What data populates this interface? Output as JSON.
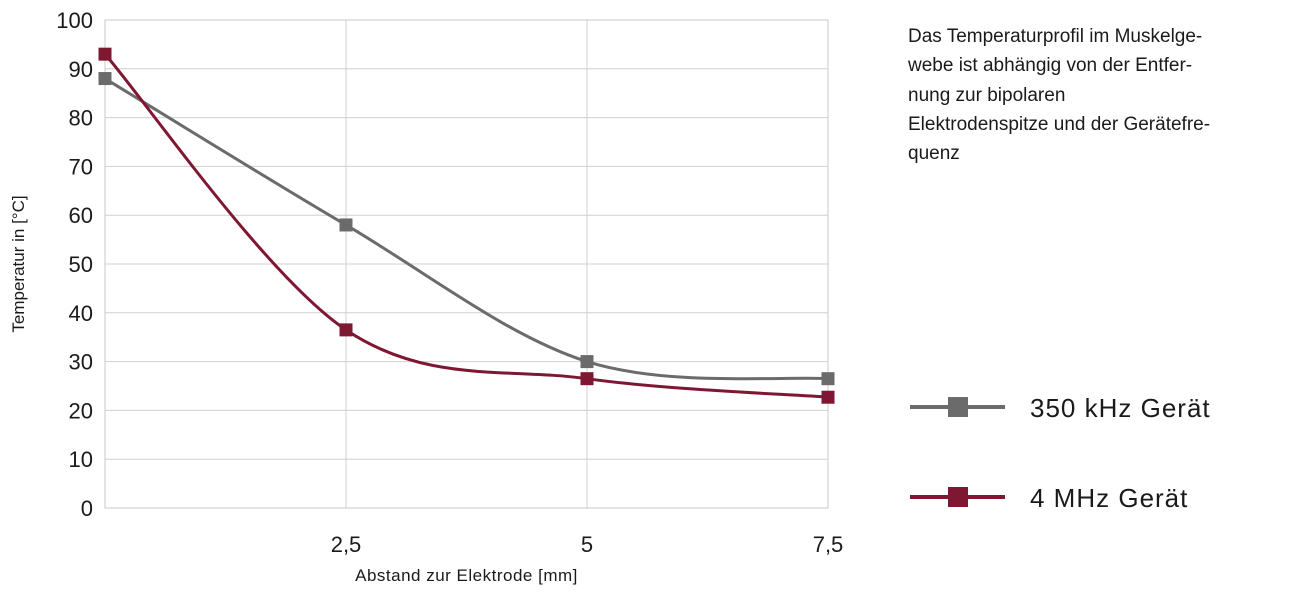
{
  "chart_data": {
    "type": "line",
    "title": "",
    "xlabel": "Abstand zur Elektrode [mm]",
    "ylabel": "Temperatur in [°C]",
    "x": [
      0,
      2.5,
      5,
      7.5
    ],
    "xlim": [
      0,
      7.5
    ],
    "x_tick_labels": [
      "2,5",
      "5",
      "7,5"
    ],
    "x_tick_values": [
      2.5,
      5,
      7.5
    ],
    "ylim": [
      0,
      100
    ],
    "y_ticks": [
      0,
      10,
      20,
      30,
      40,
      50,
      60,
      70,
      80,
      90,
      100
    ],
    "grid": true,
    "smooth": true,
    "legend_position": "right",
    "series": [
      {
        "name": "350 kHz Gerät",
        "color": "#6b6b6b",
        "marker": "square",
        "values": [
          88,
          58,
          30,
          26.5
        ]
      },
      {
        "name": "4 MHz Gerät",
        "color": "#7f1733",
        "marker": "square",
        "values": [
          93,
          36.5,
          26.5,
          22.7
        ]
      }
    ],
    "annotation_lines": [
      "Das Temperaturprofil im Muskelge-",
      "webe ist abhängig von der Entfer-",
      "nung zur bipolaren",
      "Elektrodenspitze und der Gerätefre-",
      "quenz"
    ]
  }
}
